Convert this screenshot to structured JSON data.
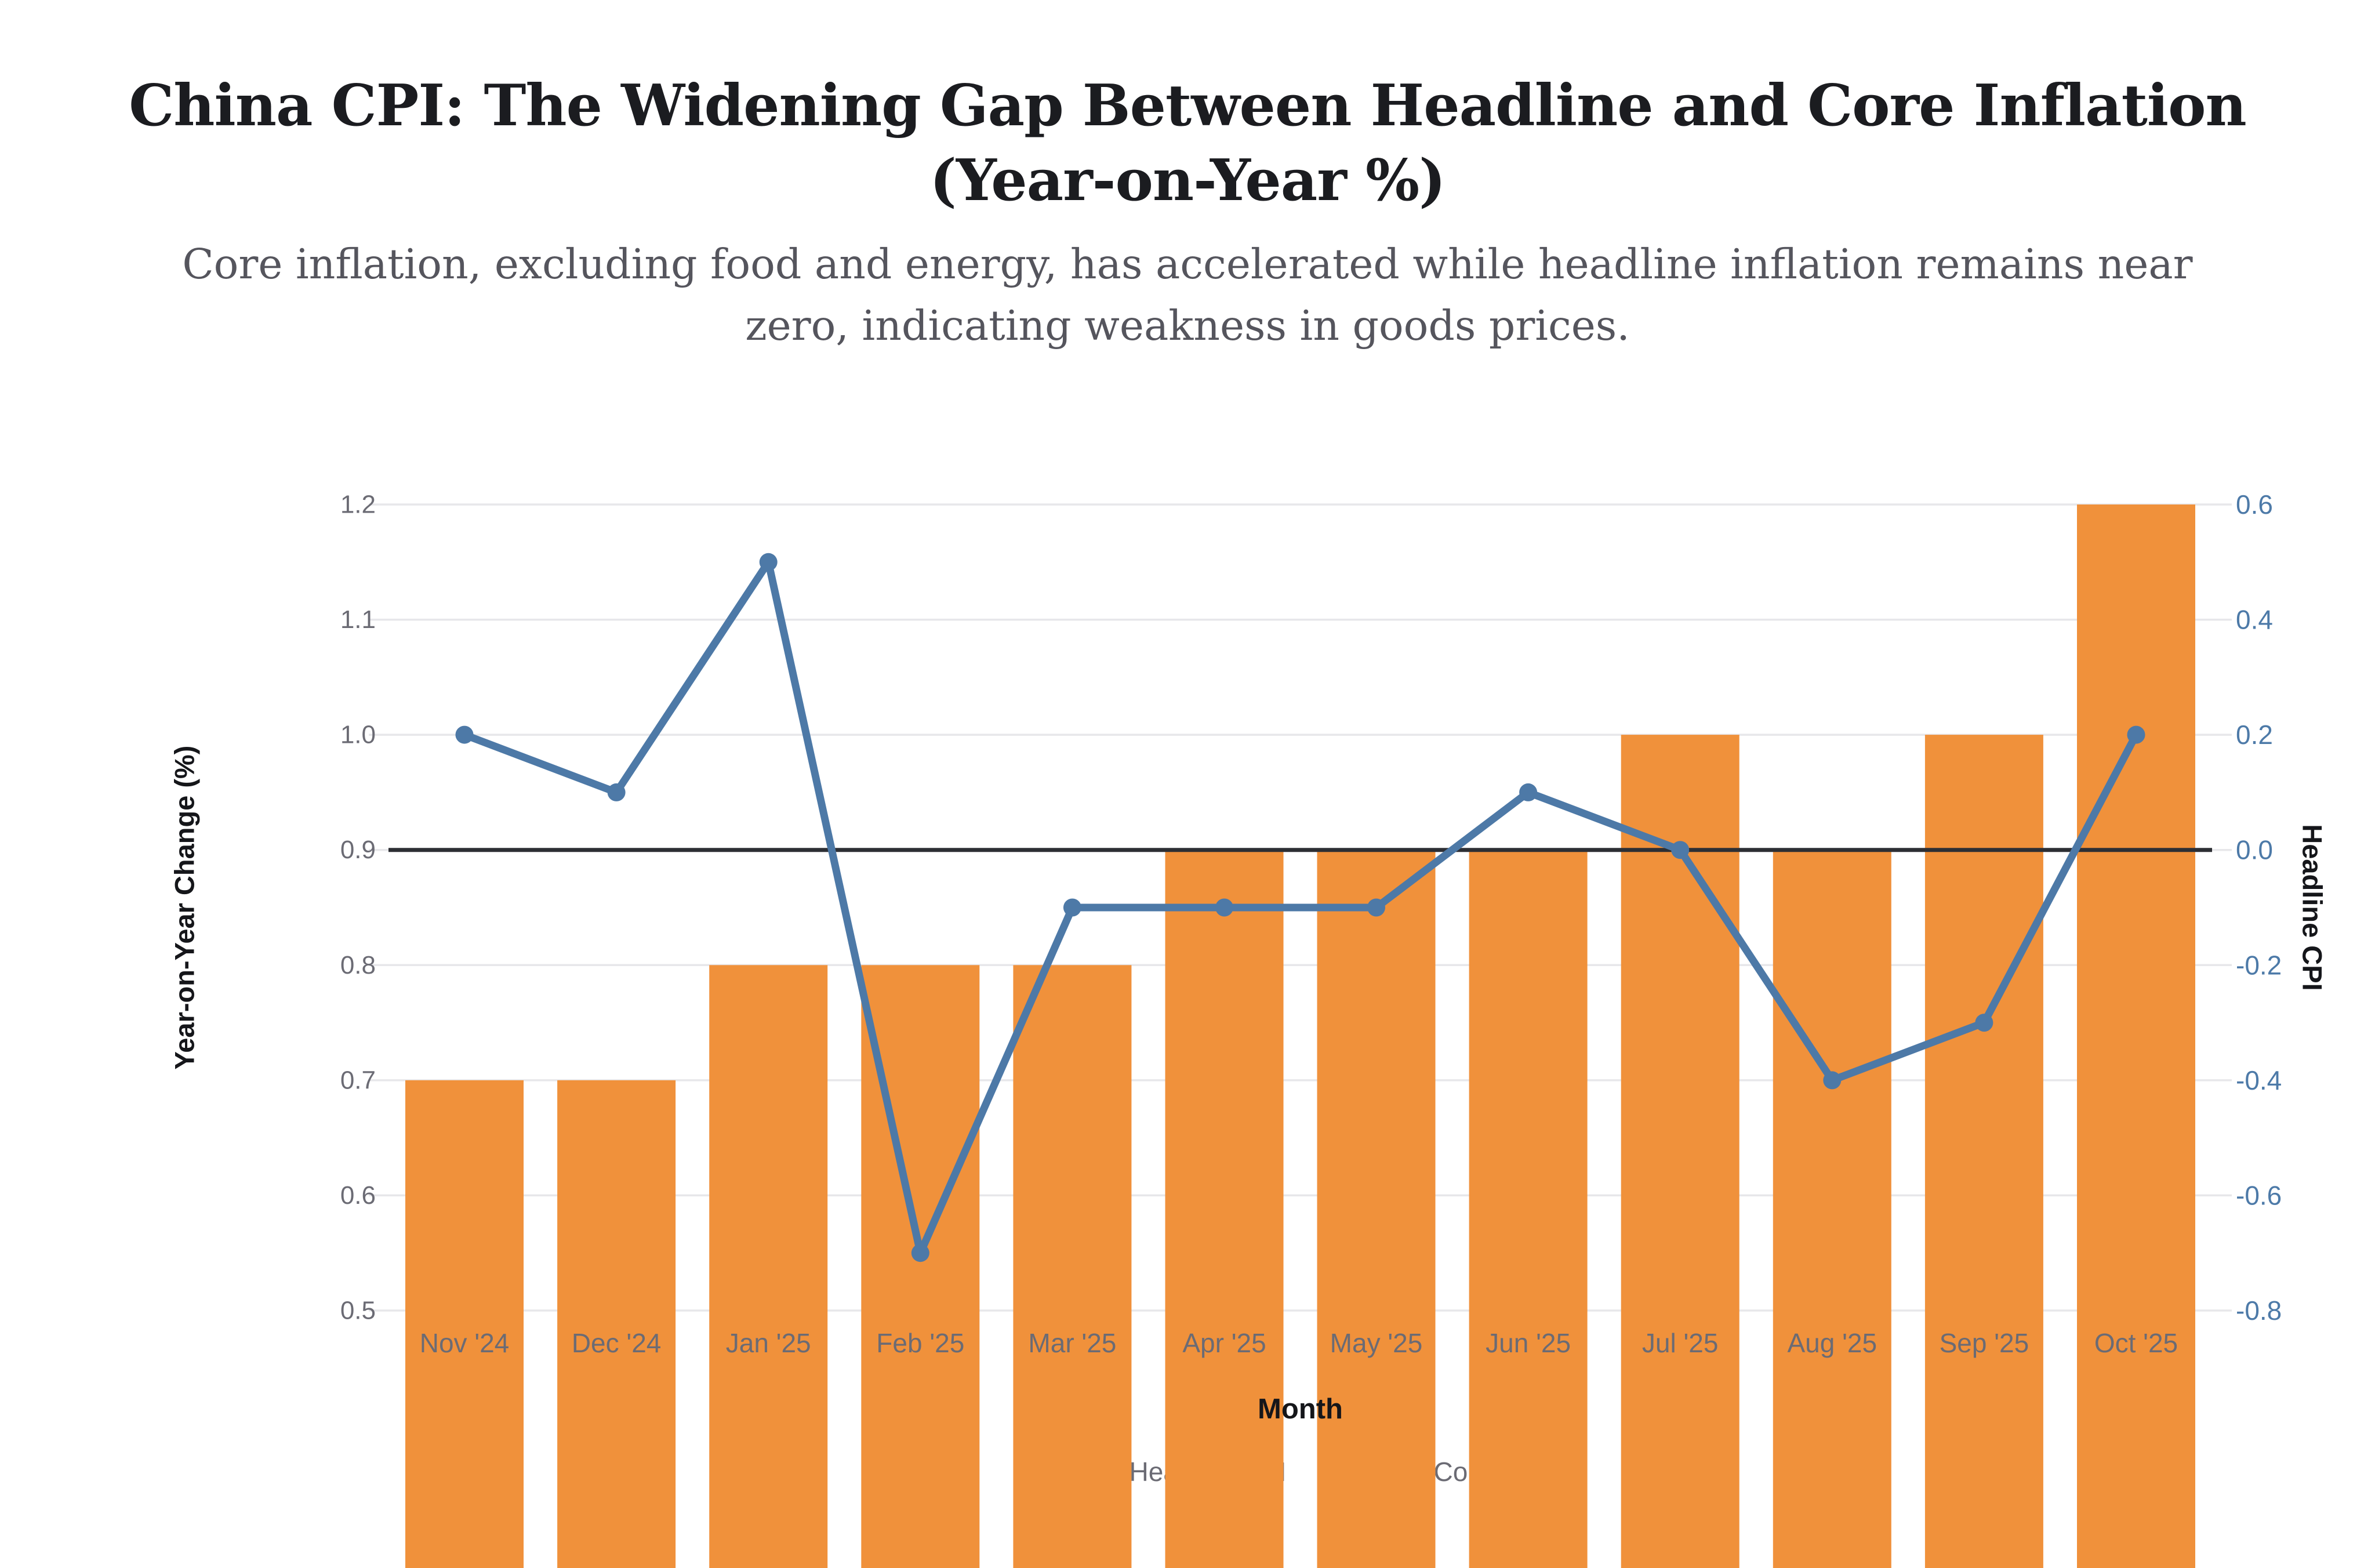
{
  "page": {
    "title": "China CPI: The Widening Gap Between Headline and Core Inflation (Year-on-Year %)",
    "subtitle": "Core inflation, excluding food and energy, has accelerated while headline inflation remains near zero, indicating weakness in goods prices."
  },
  "chart_data": {
    "type": "bar",
    "subtype": "dual-axis bar + line combo",
    "title": "China CPI: The Widening Gap Between Headline and Core Inflation (Year-on-Year %)",
    "subtitle": "Core inflation, excluding food and energy, has accelerated while headline inflation remains near zero, indicating weakness in goods prices.",
    "categories": [
      "Nov '24",
      "Dec '24",
      "Jan '25",
      "Feb '25",
      "Mar '25",
      "Apr '25",
      "May '25",
      "Jun '25",
      "Jul '25",
      "Aug '25",
      "Sep '25",
      "Oct '25"
    ],
    "series": [
      {
        "name": "Core CPI",
        "render": "bar",
        "axis": "left",
        "color": "#F0913B",
        "values": [
          0.7,
          0.7,
          0.8,
          0.8,
          0.8,
          0.9,
          0.9,
          0.9,
          1.0,
          0.9,
          1.0,
          1.2
        ]
      },
      {
        "name": "Headline CPI",
        "render": "line",
        "axis": "right",
        "color": "#4D79A7",
        "values": [
          0.2,
          0.1,
          0.5,
          -0.7,
          -0.1,
          -0.1,
          -0.1,
          0.1,
          0.0,
          -0.4,
          -0.3,
          0.2
        ]
      }
    ],
    "x_axis": {
      "label": "Month"
    },
    "left_axis": {
      "label": "Year-on-Year Change (%)",
      "min": 0.5,
      "max": 1.2,
      "tick_labels": [
        "1.2",
        "1.1",
        "1.0",
        "0.9",
        "0.8",
        "0.7",
        "0.6",
        "0.5"
      ],
      "tick_values": [
        1.2,
        1.1,
        1.0,
        0.9,
        0.8,
        0.7,
        0.6,
        0.5
      ]
    },
    "right_axis": {
      "label": "Headline CPI",
      "min": -0.8,
      "max": 0.6,
      "tick_labels": [
        "0.6",
        "0.4",
        "0.2",
        "0.0",
        "-0.2",
        "-0.4",
        "-0.6",
        "-0.8"
      ],
      "tick_values": [
        0.6,
        0.4,
        0.2,
        0.0,
        -0.2,
        -0.4,
        -0.6,
        -0.8
      ]
    },
    "baseline": {
      "left_value": 0.9,
      "right_value": 0.0
    },
    "legend": {
      "position": "bottom-center",
      "items": [
        "Headline CPI",
        "Core CPI"
      ]
    },
    "grid": "horizontal-only",
    "notes": "Bars overflow below the plot bottom to the image edge, covering most of the legend; month tick labels, zero line and the blue line are drawn on top of the bars."
  },
  "colors": {
    "bar_orange": "#F0913B",
    "line_blue": "#4D79A7",
    "right_tick_label": "#4D7AA8",
    "gray_tick_label": "#6B6B74",
    "gridline": "#E7E7EA",
    "zero_line": "#2D2F34",
    "axis_title": "#15161A",
    "background": "#FFFFFF"
  }
}
